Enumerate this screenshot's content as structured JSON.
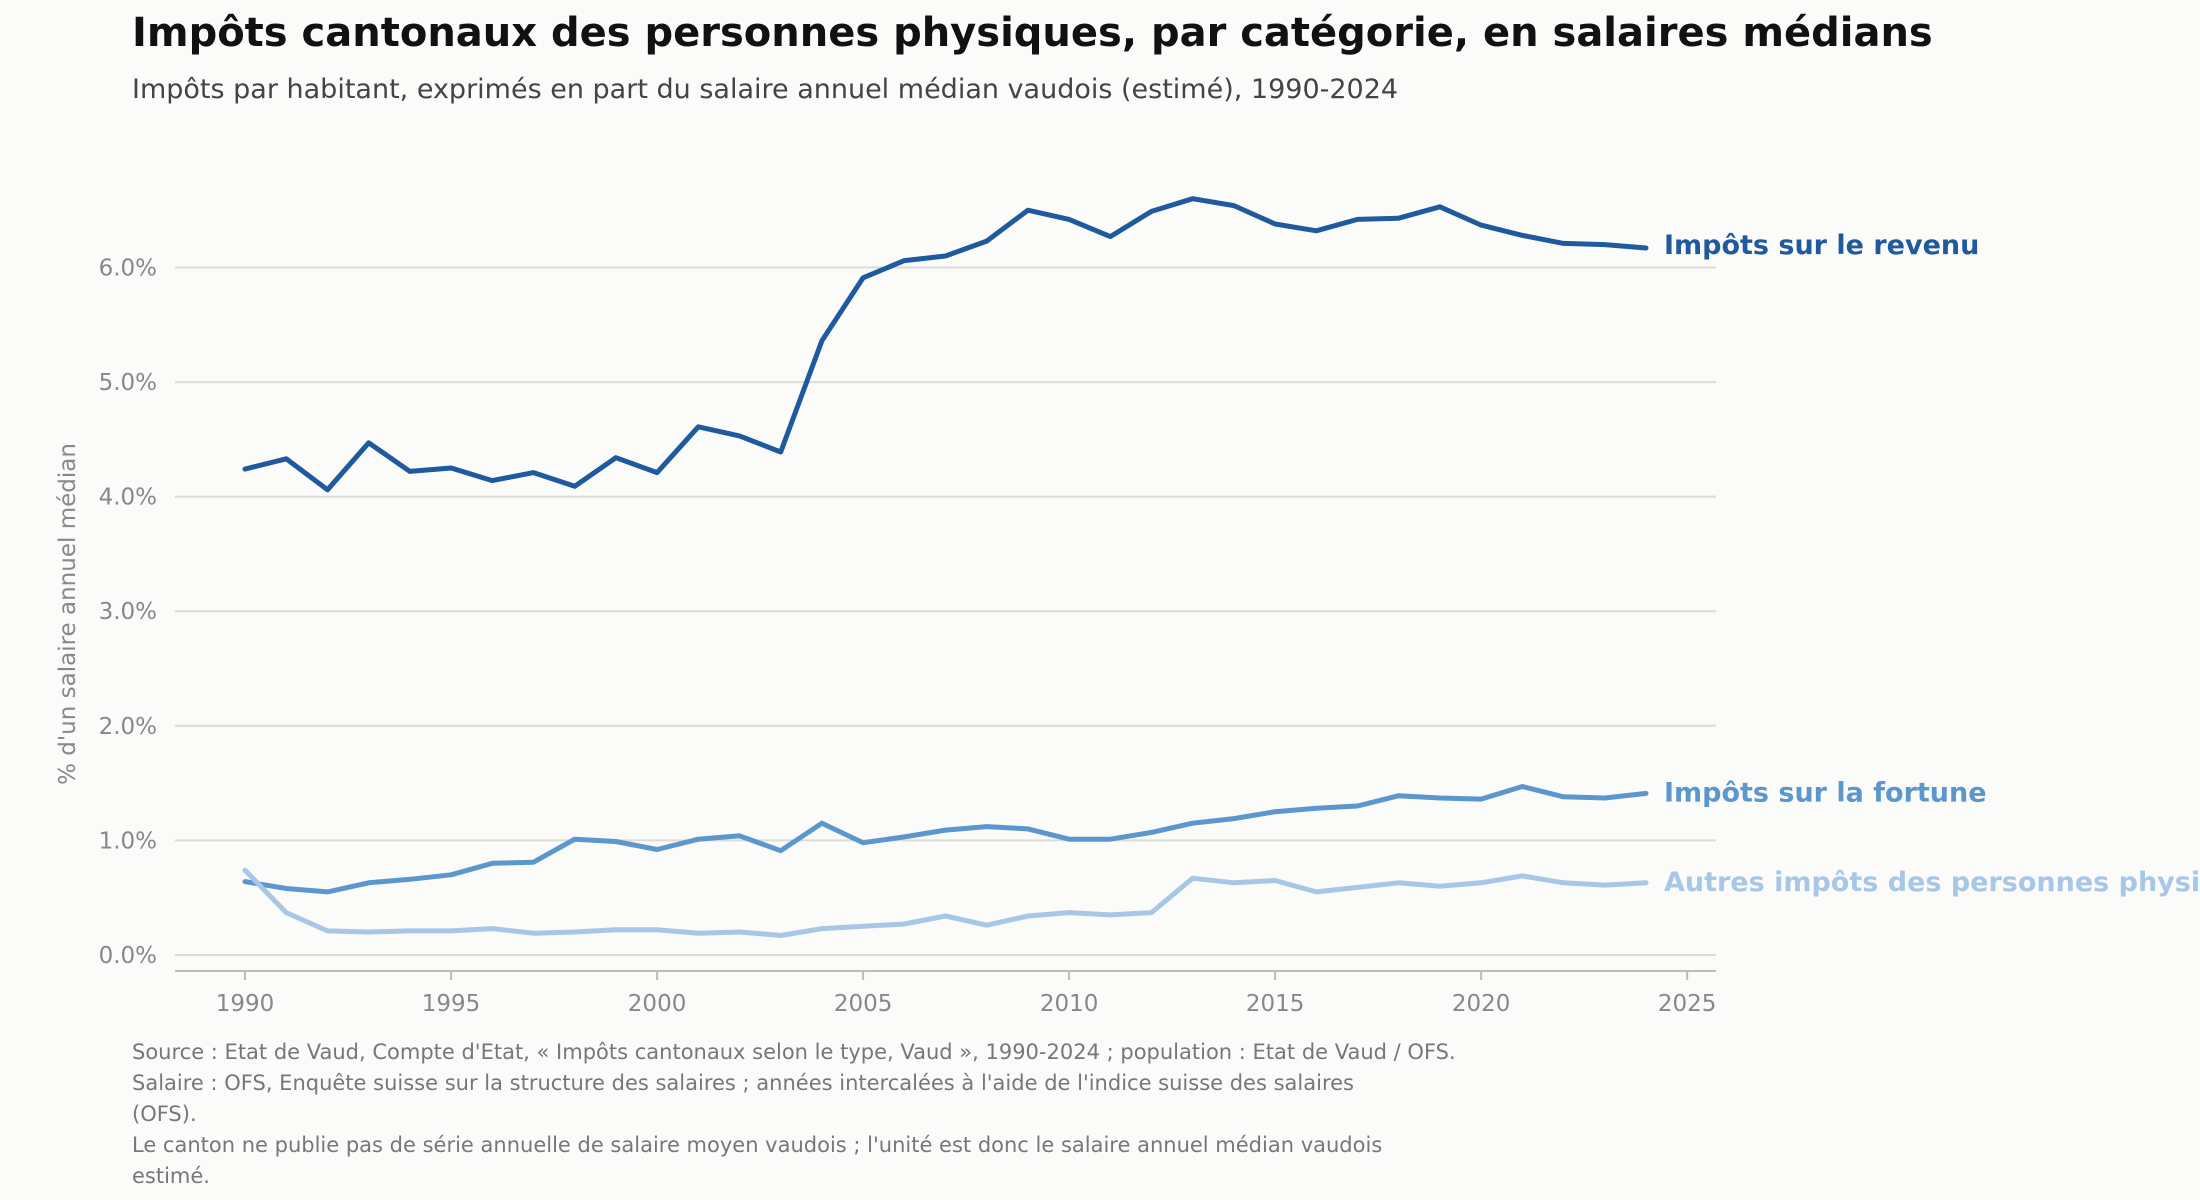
{
  "title": "Impôts cantonaux des personnes physiques, par catégorie, en salaires médians",
  "subtitle": "Impôts par habitant, exprimés en part du salaire annuel médian vaudois (estimé), 1990-2024",
  "footer": {
    "line1": "Source : Etat de Vaud, Compte d'Etat, « Impôts cantonaux selon le type, Vaud », 1990-2024 ; population : Etat de Vaud / OFS.",
    "line2": "Salaire : OFS, Enquête suisse sur la structure des salaires ; années intercalées à l'aide de l'indice suisse des salaires",
    "line3": "(OFS).",
    "line4": "Le canton ne publie pas de série annuelle de salaire moyen vaudois ; l'unité est donc le salaire annuel médian vaudois",
    "line5": "estimé."
  },
  "chart_data": {
    "type": "line",
    "title": "Impôts cantonaux des personnes physiques, par catégorie, en salaires médians",
    "subtitle": "Impôts par habitant, exprimés en part du salaire annuel médian vaudois (estimé), 1990-2024",
    "xlabel": "",
    "ylabel": "% d'un salaire annuel médian",
    "xlim": [
      1988.3,
      2025.7
    ],
    "ylim": [
      -0.14,
      7.2
    ],
    "x_ticks": [
      1990,
      1995,
      2000,
      2005,
      2010,
      2015,
      2020,
      2025
    ],
    "x_tick_labels": [
      "1990",
      "1995",
      "2000",
      "2005",
      "2010",
      "2015",
      "2020",
      "2025"
    ],
    "y_ticks": [
      0,
      1,
      2,
      3,
      4,
      5,
      6
    ],
    "y_tick_labels": [
      "0.0%",
      "1.0%",
      "2.0%",
      "3.0%",
      "4.0%",
      "5.0%",
      "6.0%"
    ],
    "grid": "horizontal",
    "legend": "direct labels at line ends (right)",
    "x": [
      1990,
      1991,
      1992,
      1993,
      1994,
      1995,
      1996,
      1997,
      1998,
      1999,
      2000,
      2001,
      2002,
      2003,
      2004,
      2005,
      2006,
      2007,
      2008,
      2009,
      2010,
      2011,
      2012,
      2013,
      2014,
      2015,
      2016,
      2017,
      2018,
      2019,
      2020,
      2021,
      2022,
      2023,
      2024
    ],
    "series": [
      {
        "name": "Impôts sur le revenu",
        "color": "#1f5a9e",
        "values": [
          4.24,
          4.33,
          4.06,
          4.47,
          4.22,
          4.25,
          4.14,
          4.21,
          4.09,
          4.34,
          4.21,
          4.61,
          4.53,
          4.39,
          5.36,
          5.91,
          6.06,
          6.1,
          6.23,
          6.5,
          6.42,
          6.27,
          6.49,
          6.6,
          6.54,
          6.38,
          6.32,
          6.42,
          6.43,
          6.53,
          6.37,
          6.28,
          6.21,
          6.2,
          6.17
        ]
      },
      {
        "name": "Impôts sur la fortune",
        "color": "#5b97cc",
        "values": [
          0.64,
          0.58,
          0.55,
          0.63,
          0.66,
          0.7,
          0.8,
          0.81,
          1.01,
          0.99,
          0.92,
          1.01,
          1.04,
          0.91,
          1.15,
          0.98,
          1.03,
          1.09,
          1.12,
          1.1,
          1.01,
          1.01,
          1.07,
          1.15,
          1.19,
          1.25,
          1.28,
          1.3,
          1.39,
          1.37,
          1.36,
          1.47,
          1.38,
          1.37,
          1.41
        ]
      },
      {
        "name": "Autres impôts des personnes physiques",
        "color": "#a8c7e6",
        "values": [
          0.74,
          0.37,
          0.21,
          0.2,
          0.21,
          0.21,
          0.23,
          0.19,
          0.2,
          0.22,
          0.22,
          0.19,
          0.2,
          0.17,
          0.23,
          0.25,
          0.27,
          0.34,
          0.26,
          0.34,
          0.37,
          0.35,
          0.37,
          0.67,
          0.63,
          0.65,
          0.55,
          0.59,
          0.63,
          0.6,
          0.63,
          0.69,
          0.63,
          0.61,
          0.63
        ]
      }
    ]
  }
}
